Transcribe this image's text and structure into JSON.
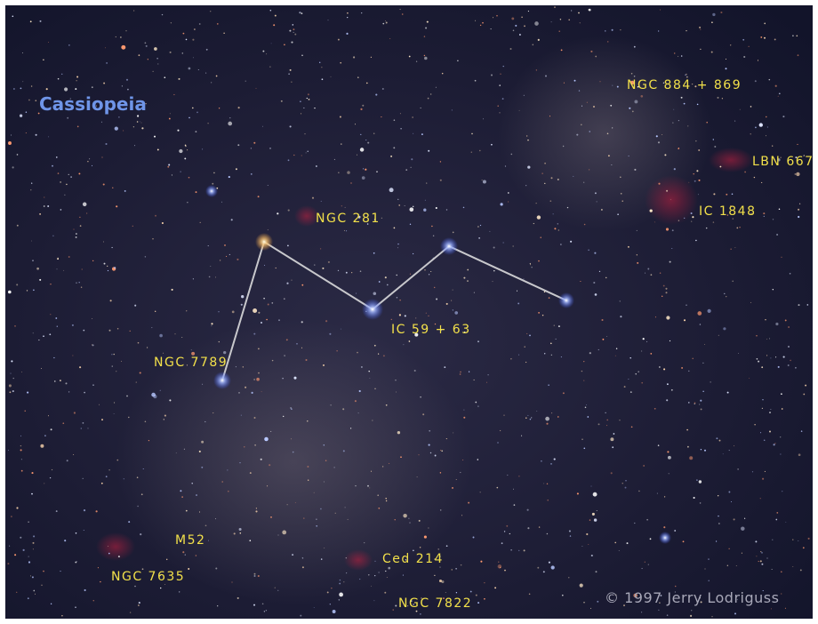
{
  "title": "Cassiopeia",
  "labels": [
    "NGC 884 + 869",
    "LBN 667",
    "IC 1848",
    "NGC 281",
    "IC 59 + 63",
    "NGC 7789",
    "M52",
    "NGC 7635",
    "Ced 214",
    "NGC 7822"
  ],
  "credit": "© 1997 Jerry Lodriguss"
}
